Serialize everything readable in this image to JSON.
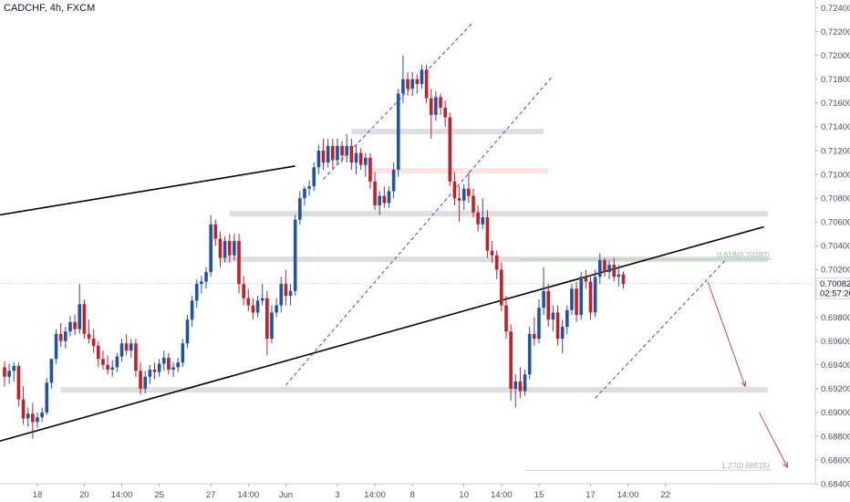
{
  "header": {
    "title": "CADCHF, 4h, FXCM"
  },
  "chart_data": {
    "type": "candlestick",
    "symbol": "CADCHF",
    "timeframe": "4h",
    "source": "FXCM",
    "ylim": [
      0.6834,
      0.7245
    ],
    "y_ticks": [
      "0.68400",
      "0.68600",
      "0.68800",
      "0.69000",
      "0.69200",
      "0.69400",
      "0.69600",
      "0.69800",
      "0.70000",
      "0.70200",
      "0.70400",
      "0.70600",
      "0.70800",
      "0.71000",
      "0.71200",
      "0.71400",
      "0.71600",
      "0.71800",
      "0.72000",
      "0.72200",
      "0.72400"
    ],
    "x_ticks": [
      {
        "label": "18",
        "bar": 7
      },
      {
        "label": "20",
        "bar": 17
      },
      {
        "label": "14:00",
        "bar": 25
      },
      {
        "label": "25",
        "bar": 33
      },
      {
        "label": "27",
        "bar": 44
      },
      {
        "label": "14:00",
        "bar": 52
      },
      {
        "label": "Jun",
        "bar": 60
      },
      {
        "label": "3",
        "bar": 71
      },
      {
        "label": "14:00",
        "bar": 79
      },
      {
        "label": "8",
        "bar": 87
      },
      {
        "label": "10",
        "bar": 98
      },
      {
        "label": "14:00",
        "bar": 106
      },
      {
        "label": "15",
        "bar": 114
      },
      {
        "label": "17",
        "bar": 125
      },
      {
        "label": "14:00",
        "bar": 133
      },
      {
        "label": "22",
        "bar": 141
      }
    ],
    "current_price": {
      "value": 0.70082,
      "label": "0.70082",
      "countdown": "02:57:20"
    },
    "fib_levels": [
      {
        "label": "0.618(0.70287)",
        "value": 0.70287
      },
      {
        "label": "1.27(0.68515)",
        "value": 0.68515
      }
    ],
    "ohlc": [
      [
        0.6938,
        0.6943,
        0.6922,
        0.693
      ],
      [
        0.693,
        0.6941,
        0.6924,
        0.6935
      ],
      [
        0.6935,
        0.6942,
        0.6926,
        0.6939
      ],
      [
        0.6939,
        0.6942,
        0.6905,
        0.6911
      ],
      [
        0.6911,
        0.6922,
        0.689,
        0.6895
      ],
      [
        0.6895,
        0.6904,
        0.6888,
        0.6899
      ],
      [
        0.6899,
        0.6908,
        0.6878,
        0.6892
      ],
      [
        0.6892,
        0.69,
        0.6887,
        0.6896
      ],
      [
        0.6896,
        0.6904,
        0.6892,
        0.69
      ],
      [
        0.69,
        0.6929,
        0.6898,
        0.6925
      ],
      [
        0.6925,
        0.6945,
        0.692,
        0.6945
      ],
      [
        0.6945,
        0.697,
        0.6941,
        0.6966
      ],
      [
        0.6966,
        0.6975,
        0.6955,
        0.696
      ],
      [
        0.696,
        0.6972,
        0.6954,
        0.6968
      ],
      [
        0.6968,
        0.6981,
        0.6964,
        0.6976
      ],
      [
        0.6976,
        0.6982,
        0.6965,
        0.697
      ],
      [
        0.697,
        0.7008,
        0.6966,
        0.6991
      ],
      [
        0.6991,
        0.6995,
        0.6962,
        0.6966
      ],
      [
        0.6966,
        0.6978,
        0.6958,
        0.6962
      ],
      [
        0.6962,
        0.697,
        0.695,
        0.6956
      ],
      [
        0.6956,
        0.696,
        0.6938,
        0.6945
      ],
      [
        0.6945,
        0.6952,
        0.6936,
        0.694
      ],
      [
        0.694,
        0.6948,
        0.6932,
        0.6936
      ],
      [
        0.6936,
        0.6944,
        0.693,
        0.6938
      ],
      [
        0.6938,
        0.695,
        0.6934,
        0.6947
      ],
      [
        0.6947,
        0.6962,
        0.6943,
        0.6958
      ],
      [
        0.6958,
        0.6966,
        0.6948,
        0.6952
      ],
      [
        0.6952,
        0.6962,
        0.6946,
        0.6958
      ],
      [
        0.6958,
        0.6962,
        0.693,
        0.6935
      ],
      [
        0.6935,
        0.6942,
        0.6915,
        0.692
      ],
      [
        0.692,
        0.6935,
        0.6916,
        0.693
      ],
      [
        0.693,
        0.694,
        0.6924,
        0.6936
      ],
      [
        0.6936,
        0.6942,
        0.6928,
        0.6934
      ],
      [
        0.6934,
        0.6945,
        0.693,
        0.6941
      ],
      [
        0.6941,
        0.6952,
        0.6935,
        0.6946
      ],
      [
        0.6946,
        0.695,
        0.6932,
        0.6936
      ],
      [
        0.6936,
        0.6942,
        0.693,
        0.6938
      ],
      [
        0.6938,
        0.6946,
        0.6934,
        0.6942
      ],
      [
        0.6942,
        0.6962,
        0.6938,
        0.6958
      ],
      [
        0.6958,
        0.6982,
        0.6954,
        0.6978
      ],
      [
        0.6978,
        0.6998,
        0.6972,
        0.6994
      ],
      [
        0.6994,
        0.7012,
        0.6988,
        0.7008
      ],
      [
        0.7008,
        0.7015,
        0.7,
        0.701
      ],
      [
        0.701,
        0.7022,
        0.7004,
        0.7018
      ],
      [
        0.7018,
        0.7066,
        0.7014,
        0.7058
      ],
      [
        0.7058,
        0.7062,
        0.704,
        0.7046
      ],
      [
        0.7046,
        0.7052,
        0.7022,
        0.703
      ],
      [
        0.703,
        0.7048,
        0.7026,
        0.7044
      ],
      [
        0.7044,
        0.705,
        0.7026,
        0.7032
      ],
      [
        0.7032,
        0.705,
        0.7028,
        0.7044
      ],
      [
        0.7044,
        0.705,
        0.7,
        0.7008
      ],
      [
        0.7008,
        0.7015,
        0.699,
        0.6996
      ],
      [
        0.6996,
        0.7004,
        0.6985,
        0.699
      ],
      [
        0.699,
        0.6996,
        0.6978,
        0.6984
      ],
      [
        0.6984,
        0.6998,
        0.698,
        0.6994
      ],
      [
        0.6994,
        0.7008,
        0.699,
        0.6996
      ],
      [
        0.6996,
        0.7002,
        0.6948,
        0.6962
      ],
      [
        0.6962,
        0.699,
        0.6958,
        0.6984
      ],
      [
        0.6984,
        0.6996,
        0.698,
        0.699
      ],
      [
        0.699,
        0.7014,
        0.6984,
        0.7008
      ],
      [
        0.7008,
        0.702,
        0.699,
        0.6998
      ],
      [
        0.6998,
        0.7008,
        0.699,
        0.7002
      ],
      [
        0.7002,
        0.7066,
        0.6998,
        0.7062
      ],
      [
        0.7062,
        0.7086,
        0.7058,
        0.708
      ],
      [
        0.708,
        0.709,
        0.7074,
        0.7088
      ],
      [
        0.7088,
        0.7095,
        0.7082,
        0.709
      ],
      [
        0.709,
        0.711,
        0.7086,
        0.7106
      ],
      [
        0.7106,
        0.7125,
        0.71,
        0.712
      ],
      [
        0.712,
        0.713,
        0.7104,
        0.711
      ],
      [
        0.711,
        0.713,
        0.7106,
        0.7124
      ],
      [
        0.7124,
        0.713,
        0.7105,
        0.7112
      ],
      [
        0.7112,
        0.713,
        0.7108,
        0.7124
      ],
      [
        0.7124,
        0.7128,
        0.711,
        0.7116
      ],
      [
        0.7116,
        0.7134,
        0.711,
        0.7124
      ],
      [
        0.7124,
        0.713,
        0.7104,
        0.711
      ],
      [
        0.711,
        0.7124,
        0.71,
        0.7118
      ],
      [
        0.7118,
        0.7122,
        0.7104,
        0.7108
      ],
      [
        0.7108,
        0.7118,
        0.7098,
        0.7114
      ],
      [
        0.7114,
        0.7118,
        0.7088,
        0.7094
      ],
      [
        0.7094,
        0.7102,
        0.707,
        0.7074
      ],
      [
        0.7074,
        0.7086,
        0.7066,
        0.7082
      ],
      [
        0.7082,
        0.709,
        0.7072,
        0.7076
      ],
      [
        0.7076,
        0.709,
        0.7072,
        0.7086
      ],
      [
        0.7086,
        0.711,
        0.708,
        0.7104
      ],
      [
        0.7104,
        0.7172,
        0.7098,
        0.7168
      ],
      [
        0.7168,
        0.72,
        0.716,
        0.718
      ],
      [
        0.718,
        0.7186,
        0.7166,
        0.7172
      ],
      [
        0.7172,
        0.7186,
        0.7166,
        0.718
      ],
      [
        0.718,
        0.7184,
        0.7168,
        0.7176
      ],
      [
        0.7176,
        0.7192,
        0.7172,
        0.7188
      ],
      [
        0.7188,
        0.7192,
        0.716,
        0.7164
      ],
      [
        0.7164,
        0.7172,
        0.713,
        0.715
      ],
      [
        0.715,
        0.717,
        0.7145,
        0.7165
      ],
      [
        0.7165,
        0.7168,
        0.715,
        0.7156
      ],
      [
        0.7156,
        0.7162,
        0.714,
        0.7148
      ],
      [
        0.7148,
        0.7152,
        0.709,
        0.7094
      ],
      [
        0.7094,
        0.7102,
        0.7074,
        0.708
      ],
      [
        0.708,
        0.709,
        0.706,
        0.7078
      ],
      [
        0.7078,
        0.7092,
        0.707,
        0.7088
      ],
      [
        0.7088,
        0.7102,
        0.7076,
        0.7082
      ],
      [
        0.7082,
        0.7088,
        0.7064,
        0.7068
      ],
      [
        0.7068,
        0.7074,
        0.7052,
        0.7058
      ],
      [
        0.7058,
        0.708,
        0.7054,
        0.7064
      ],
      [
        0.7064,
        0.707,
        0.703,
        0.7036
      ],
      [
        0.7036,
        0.7044,
        0.7026,
        0.7032
      ],
      [
        0.7032,
        0.7036,
        0.7012,
        0.702
      ],
      [
        0.702,
        0.7026,
        0.6985,
        0.699
      ],
      [
        0.699,
        0.6998,
        0.6962,
        0.6968
      ],
      [
        0.6968,
        0.6974,
        0.691,
        0.692
      ],
      [
        0.692,
        0.6932,
        0.6904,
        0.6926
      ],
      [
        0.6926,
        0.6938,
        0.6912,
        0.6918
      ],
      [
        0.6918,
        0.6936,
        0.6914,
        0.6932
      ],
      [
        0.6932,
        0.6972,
        0.6928,
        0.6966
      ],
      [
        0.6966,
        0.698,
        0.6956,
        0.6962
      ],
      [
        0.6962,
        0.6995,
        0.6958,
        0.6988
      ],
      [
        0.6988,
        0.7022,
        0.6982,
        0.7002
      ],
      [
        0.7002,
        0.7008,
        0.6972,
        0.6978
      ],
      [
        0.6978,
        0.699,
        0.6968,
        0.6984
      ],
      [
        0.6984,
        0.699,
        0.6956,
        0.6962
      ],
      [
        0.6962,
        0.6978,
        0.695,
        0.6972
      ],
      [
        0.6972,
        0.699,
        0.6966,
        0.6986
      ],
      [
        0.6986,
        0.7008,
        0.6982,
        0.7004
      ],
      [
        0.7004,
        0.701,
        0.6976,
        0.6982
      ],
      [
        0.6982,
        0.7018,
        0.6978,
        0.7014
      ],
      [
        0.7014,
        0.702,
        0.7004,
        0.701
      ],
      [
        0.701,
        0.7016,
        0.6978,
        0.6984
      ],
      [
        0.6984,
        0.702,
        0.698,
        0.7014
      ],
      [
        0.7014,
        0.7034,
        0.7008,
        0.7028
      ],
      [
        0.7028,
        0.703,
        0.7014,
        0.7018
      ],
      [
        0.7018,
        0.7028,
        0.7012,
        0.7024
      ],
      [
        0.7024,
        0.703,
        0.701,
        0.7014
      ],
      [
        0.7014,
        0.7024,
        0.7006,
        0.7016
      ],
      [
        0.7016,
        0.7018,
        0.7004,
        0.7008
      ]
    ],
    "zones": [
      {
        "kind": "support",
        "value": 0.6919,
        "bar_from": 12,
        "bar_to": 172
      },
      {
        "kind": "resistance",
        "value": 0.70287,
        "bar_from": 46,
        "bar_to": 172
      },
      {
        "kind": "resistance",
        "value": 0.7067,
        "bar_from": 48,
        "bar_to": 172
      },
      {
        "kind": "resistance",
        "value": 0.7136,
        "bar_from": 74,
        "bar_to": 115
      },
      {
        "kind": "pink",
        "value": 0.7103,
        "bar_from": 78,
        "bar_to": 116
      }
    ],
    "trendlines": [
      {
        "style": "solid",
        "from": [
          -1,
          0.7066
        ],
        "to": [
          62,
          0.7107
        ]
      },
      {
        "style": "solid",
        "from": [
          -1,
          0.6876
        ],
        "to": [
          162,
          0.7056
        ]
      }
    ],
    "channels": [
      {
        "style": "dashed",
        "from": [
          68,
          0.7096
        ],
        "to": [
          100,
          0.7228
        ]
      },
      {
        "style": "dashed",
        "from": [
          60,
          0.6923
        ],
        "to": [
          117,
          0.7183
        ]
      },
      {
        "style": "dashed",
        "from": [
          126,
          0.6912
        ],
        "to": [
          154,
          0.7029
        ]
      }
    ],
    "projection_arrows": [
      {
        "from": [
          150,
          0.701
        ],
        "to": [
          158,
          0.6922
        ]
      },
      {
        "from": [
          161,
          0.69
        ],
        "to": [
          167,
          0.6854
        ]
      }
    ],
    "colors": {
      "bull": "#1e53a8",
      "bear": "#c41e26",
      "zone": "#dcdcdc",
      "pink_zone": "#fbe3e3",
      "channel": "#3b4bd8",
      "trendline": "#000000",
      "arrow": "#d03030"
    }
  }
}
